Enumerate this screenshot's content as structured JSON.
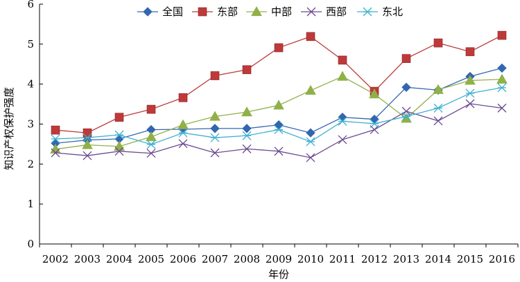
{
  "chart_data": {
    "type": "line",
    "title": "",
    "xlabel": "年份",
    "ylabel": "知识产权保护强度",
    "ylim": [
      0,
      6
    ],
    "yticks": [
      "0",
      "1",
      "2",
      "3",
      "4",
      "5",
      "6"
    ],
    "categories": [
      "2002",
      "2003",
      "2004",
      "2005",
      "2006",
      "2007",
      "2008",
      "2009",
      "2010",
      "2011",
      "2012",
      "2013",
      "2014",
      "2015",
      "2016"
    ],
    "legend_position": "top",
    "grid": false,
    "series": [
      {
        "name": "全国",
        "marker": "diamond",
        "color": "#3366b0",
        "values": [
          2.52,
          2.6,
          2.63,
          2.86,
          2.87,
          2.89,
          2.89,
          2.98,
          2.78,
          3.17,
          3.12,
          3.92,
          3.85,
          4.19,
          4.4
        ]
      },
      {
        "name": "东部",
        "marker": "square",
        "color": "#be3a3a",
        "values": [
          2.85,
          2.78,
          3.17,
          3.37,
          3.66,
          4.21,
          4.36,
          4.91,
          5.19,
          4.6,
          3.82,
          4.64,
          5.03,
          4.81,
          5.22
        ]
      },
      {
        "name": "中部",
        "marker": "triangle",
        "color": "#90b048",
        "values": [
          2.37,
          2.48,
          2.44,
          2.68,
          2.98,
          3.19,
          3.3,
          3.47,
          3.84,
          4.19,
          3.75,
          3.14,
          3.86,
          4.09,
          4.12
        ]
      },
      {
        "name": "西部",
        "marker": "x",
        "color": "#6b4a91",
        "values": [
          2.28,
          2.21,
          2.32,
          2.27,
          2.51,
          2.28,
          2.38,
          2.32,
          2.16,
          2.61,
          2.86,
          3.32,
          3.08,
          3.51,
          3.4
        ]
      },
      {
        "name": "东北",
        "marker": "asterisk",
        "color": "#3fb0d0",
        "values": [
          2.63,
          2.66,
          2.73,
          2.49,
          2.78,
          2.66,
          2.71,
          2.86,
          2.56,
          3.07,
          3.01,
          3.19,
          3.4,
          3.77,
          3.91
        ]
      }
    ]
  }
}
